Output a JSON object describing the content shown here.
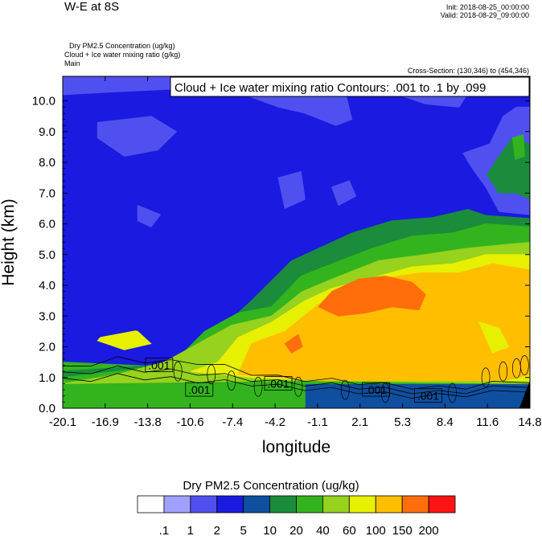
{
  "header": {
    "title": "W-E at 8S",
    "init": "Init: 2018-08-25_00:00:00",
    "valid": "Valid: 2018-08-29_09:00:00",
    "sub1": "Dry PM2.5 Concentration   (ug/kg)",
    "sub2": "Cloud + Ice water mixing ratio   (g/kg)",
    "sub3": "Main",
    "cross_section": "Cross-Section: (130,346) to (454,346)"
  },
  "colorbar": {
    "title": "Dry PM2.5 Concentration  (ug/kg)",
    "labels": [
      ".1",
      "1",
      "2",
      "5",
      "10",
      "20",
      "40",
      "60",
      "100",
      "150",
      "200"
    ],
    "colors": [
      "#ffffff",
      "#a0a0ff",
      "#5050f0",
      "#1a1ae0",
      "#0f4fa0",
      "#1a8c3c",
      "#33b41e",
      "#96d21e",
      "#e6f000",
      "#ffbe00",
      "#ff6e0a",
      "#ff1414"
    ]
  },
  "chart_data": {
    "type": "heatmap",
    "title": "W-E at 8S",
    "xlabel": "longitude",
    "ylabel": "Height (km)",
    "x_ticks": [
      "-20.1",
      "-16.9",
      "-13.8",
      "-10.6",
      "-7.4",
      "-4.2",
      "-1.1",
      "2.1",
      "5.3",
      "8.4",
      "11.6",
      "14.8"
    ],
    "y_ticks": [
      "0.0",
      "1.0",
      "2.0",
      "3.0",
      "4.0",
      "5.0",
      "6.0",
      "7.0",
      "8.0",
      "9.0",
      "10.0"
    ],
    "xlim": [
      -20.1,
      14.8
    ],
    "ylim": [
      0.0,
      10.8
    ],
    "contour_title": "Cloud + Ice water mixing ratio Contours: .001 to .1 by .099",
    "contour_labels": [
      ".001",
      ".001",
      ".001",
      ".001",
      ".001"
    ],
    "contour_label_positions": [
      [
        -12.9,
        1.4
      ],
      [
        -9.9,
        0.6
      ],
      [
        -4.0,
        0.8
      ],
      [
        3.3,
        0.6
      ],
      [
        7.2,
        0.4
      ]
    ],
    "regions": [
      {
        "level": 5,
        "color": "#0f4fa0",
        "points": [
          [
            -20.1,
            0
          ],
          [
            14.8,
            0
          ],
          [
            14.8,
            0.8
          ],
          [
            -20.1,
            1.2
          ]
        ]
      },
      {
        "level": 20,
        "color": "#33b41e",
        "points": [
          [
            -20.1,
            0
          ],
          [
            -2.0,
            0
          ],
          [
            -2.0,
            1.1
          ],
          [
            -10,
            1.3
          ],
          [
            -20.1,
            1.5
          ]
        ]
      },
      {
        "level": 10,
        "color": "#1a8c3c",
        "points": [
          [
            -20.1,
            1.2
          ],
          [
            -10,
            1.5
          ],
          [
            -8.5,
            2.5
          ],
          [
            -6,
            3.5
          ],
          [
            -3,
            4.8
          ],
          [
            -0.5,
            5.3
          ],
          [
            1.5,
            5.7
          ],
          [
            4.5,
            6.1
          ],
          [
            7.5,
            6.2
          ],
          [
            10.5,
            6.5
          ],
          [
            14.8,
            6.3
          ],
          [
            14.8,
            0.8
          ],
          [
            -20.1,
            0.8
          ]
        ]
      },
      {
        "level": 20,
        "color": "#33b41e",
        "points": [
          [
            -20.1,
            1.0
          ],
          [
            -12,
            1.4
          ],
          [
            -9.5,
            2.5
          ],
          [
            -7,
            3.1
          ],
          [
            -4.5,
            3.3
          ],
          [
            -2.3,
            4.3
          ],
          [
            0,
            4.7
          ],
          [
            3,
            5.2
          ],
          [
            6,
            5.6
          ],
          [
            9,
            5.7
          ],
          [
            11.5,
            6.0
          ],
          [
            14.8,
            5.9
          ],
          [
            14.8,
            0.8
          ],
          [
            -20.1,
            0.8
          ]
        ]
      },
      {
        "level": 40,
        "color": "#96d21e",
        "points": [
          [
            -20.1,
            0.8
          ],
          [
            -16,
            1.1
          ],
          [
            -12.5,
            1.5
          ],
          [
            -10,
            2.1
          ],
          [
            -7.5,
            2.7
          ],
          [
            -4.5,
            3.0
          ],
          [
            -2.2,
            3.8
          ],
          [
            0,
            4.2
          ],
          [
            3.5,
            4.8
          ],
          [
            7,
            5.0
          ],
          [
            10,
            5.2
          ],
          [
            14.8,
            5.4
          ],
          [
            14.8,
            0.8
          ],
          [
            -2.0,
            0.9
          ]
        ]
      },
      {
        "level": 60,
        "color": "#e6f000",
        "points": [
          [
            -10.5,
            1.2
          ],
          [
            -8.5,
            1.5
          ],
          [
            -7,
            2.3
          ],
          [
            -4.5,
            2.8
          ],
          [
            -2.0,
            3.5
          ],
          [
            0,
            3.9
          ],
          [
            3.5,
            4.3
          ],
          [
            6,
            4.6
          ],
          [
            9,
            4.7
          ],
          [
            11.5,
            5.0
          ],
          [
            14.8,
            5.0
          ],
          [
            14.8,
            0.9
          ],
          [
            -1.0,
            0.9
          ],
          [
            -6,
            1.0
          ]
        ]
      },
      {
        "level": 100,
        "color": "#ffbe00",
        "points": [
          [
            -7.0,
            1.1
          ],
          [
            -6.0,
            2.1
          ],
          [
            -3.5,
            2.5
          ],
          [
            -1.5,
            3.2
          ],
          [
            0.5,
            3.9
          ],
          [
            3.5,
            4.2
          ],
          [
            6.5,
            4.4
          ],
          [
            9.5,
            4.4
          ],
          [
            12.0,
            4.7
          ],
          [
            14.8,
            4.5
          ],
          [
            14.8,
            1.1
          ],
          [
            13.0,
            0.9
          ],
          [
            -1.0,
            0.9
          ]
        ]
      },
      {
        "level": 150,
        "color": "#ff6e0a",
        "points": [
          [
            -1.0,
            3.3
          ],
          [
            0.0,
            3.8
          ],
          [
            2.0,
            4.2
          ],
          [
            4.0,
            4.3
          ],
          [
            6.0,
            4.1
          ],
          [
            7.0,
            3.7
          ],
          [
            6.5,
            3.2
          ],
          [
            4.5,
            3.3
          ],
          [
            2.5,
            3.1
          ],
          [
            0.5,
            3.0
          ]
        ]
      },
      {
        "level": 150,
        "color": "#ff6e0a",
        "points": [
          [
            -3.5,
            2.1
          ],
          [
            -2.5,
            2.4
          ],
          [
            -2.2,
            2.0
          ],
          [
            -3.0,
            1.8
          ]
        ]
      },
      {
        "level": 60,
        "color": "#e6f000",
        "points": [
          [
            -16.5,
            2.7
          ],
          [
            -14.5,
            2.5
          ],
          [
            -13.5,
            2.1
          ],
          [
            -15.5,
            1.9
          ],
          [
            -17.5,
            2.2
          ]
        ]
      },
      {
        "level": 60,
        "color": "#e6f000",
        "points": [
          [
            11.0,
            2.8
          ],
          [
            12.5,
            2.6
          ],
          [
            13.2,
            2.0
          ],
          [
            12.0,
            1.8
          ]
        ]
      },
      {
        "level": 5,
        "color": "#1a1ae0",
        "points": [
          [
            -20.1,
            10.8
          ],
          [
            14.8,
            10.8
          ],
          [
            14.8,
            6.2
          ],
          [
            11.5,
            6.3
          ],
          [
            9.5,
            6.6
          ],
          [
            7.5,
            6.5
          ],
          [
            5.5,
            6.5
          ],
          [
            3.0,
            6.2
          ],
          [
            0,
            6.3
          ],
          [
            -2.5,
            5.9
          ],
          [
            -5.5,
            5.3
          ],
          [
            -7.5,
            4.3
          ],
          [
            -9.5,
            3.4
          ],
          [
            -11.5,
            2.8
          ],
          [
            -20.1,
            2.1
          ]
        ]
      },
      {
        "level": 2,
        "color": "#5050f0",
        "points": [
          [
            -20.1,
            10.8
          ],
          [
            -8.0,
            10.8
          ],
          [
            -11.0,
            10.4
          ],
          [
            -16.0,
            10.3
          ],
          [
            -20.1,
            10.2
          ]
        ]
      },
      {
        "level": 2,
        "color": "#5050f0",
        "points": [
          [
            -17.5,
            9.3
          ],
          [
            -13.5,
            9.5
          ],
          [
            -11.6,
            9.0
          ],
          [
            -13.0,
            8.4
          ],
          [
            -15.5,
            8.2
          ],
          [
            -17.5,
            8.8
          ]
        ]
      },
      {
        "level": 2,
        "color": "#5050f0",
        "points": [
          [
            -14.5,
            6.6
          ],
          [
            -12.8,
            6.3
          ],
          [
            -13.5,
            5.9
          ],
          [
            -14.5,
            6.1
          ]
        ]
      },
      {
        "level": 2,
        "color": "#5050f0",
        "points": [
          [
            -7.0,
            10.8
          ],
          [
            -1.0,
            10.8
          ],
          [
            1.0,
            10.3
          ],
          [
            1.5,
            9.4
          ],
          [
            0.3,
            9.2
          ],
          [
            -2.0,
            9.6
          ],
          [
            -4.0,
            9.8
          ],
          [
            -6.5,
            10.2
          ]
        ]
      },
      {
        "level": 2,
        "color": "#5050f0",
        "points": [
          [
            3.5,
            10.8
          ],
          [
            11.0,
            10.8
          ],
          [
            9.5,
            9.8
          ],
          [
            7.0,
            9.9
          ],
          [
            5.0,
            10.2
          ]
        ]
      },
      {
        "level": 2,
        "color": "#5050f0",
        "points": [
          [
            9.8,
            8.3
          ],
          [
            11.8,
            8.6
          ],
          [
            12.8,
            9.5
          ],
          [
            13.8,
            9.8
          ],
          [
            14.8,
            9.8
          ],
          [
            14.8,
            6.3
          ],
          [
            12.5,
            6.4
          ],
          [
            11.5,
            7.2
          ],
          [
            10.5,
            7.8
          ]
        ]
      },
      {
        "level": 10,
        "color": "#1a8c3c",
        "points": [
          [
            11.6,
            7.6
          ],
          [
            12.5,
            8.2
          ],
          [
            13.5,
            8.8
          ],
          [
            14.8,
            8.6
          ],
          [
            14.8,
            6.8
          ],
          [
            13.8,
            7.0
          ],
          [
            12.5,
            7.0
          ]
        ]
      },
      {
        "level": 20,
        "color": "#33b41e",
        "points": [
          [
            13.5,
            8.8
          ],
          [
            14.3,
            8.9
          ],
          [
            14.4,
            8.2
          ],
          [
            13.7,
            8.1
          ]
        ]
      },
      {
        "level": 2,
        "color": "#5050f0",
        "points": [
          [
            -4.0,
            7.5
          ],
          [
            -2.3,
            7.7
          ],
          [
            -2.0,
            6.8
          ],
          [
            -3.5,
            6.5
          ]
        ]
      },
      {
        "level": 2,
        "color": "#5050f0",
        "points": [
          [
            0.0,
            7.2
          ],
          [
            1.3,
            7.4
          ],
          [
            1.8,
            6.9
          ],
          [
            0.5,
            6.6
          ]
        ]
      }
    ]
  }
}
